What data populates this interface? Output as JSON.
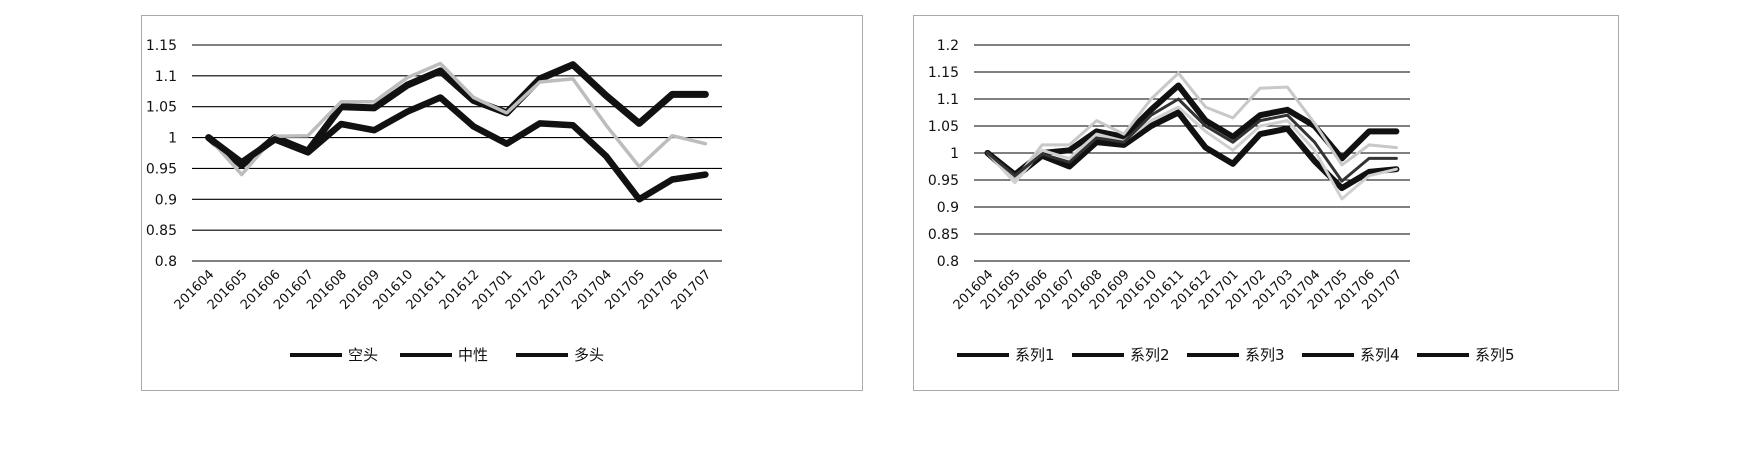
{
  "chart_data": [
    {
      "type": "line",
      "categories": [
        "201604",
        "201605",
        "201606",
        "201607",
        "201608",
        "201609",
        "201610",
        "201611",
        "201612",
        "201701",
        "201702",
        "201703",
        "201704",
        "201705",
        "201706",
        "201707"
      ],
      "ylim": [
        0.8,
        1.15
      ],
      "yticks": [
        "0.8",
        "0.85",
        "0.9",
        "0.95",
        "1",
        "1.05",
        "1.1",
        "1.15"
      ],
      "grid": true,
      "legend_position": "bottom",
      "series": [
        {
          "name": "空头",
          "values": [
            1.0,
            0.955,
            1.0,
            0.978,
            1.05,
            1.048,
            1.085,
            1.108,
            1.06,
            1.04,
            1.095,
            1.118,
            1.068,
            1.023,
            1.07,
            1.07
          ]
        },
        {
          "name": "中性",
          "values": [
            1.0,
            0.94,
            1.002,
            1.003,
            1.058,
            1.058,
            1.097,
            1.12,
            1.065,
            1.04,
            1.09,
            1.095,
            1.02,
            0.953,
            1.003,
            0.99
          ]
        },
        {
          "name": "多头",
          "values": [
            1.0,
            0.96,
            0.997,
            0.976,
            1.022,
            1.012,
            1.042,
            1.065,
            1.018,
            0.99,
            1.023,
            1.02,
            0.97,
            0.9,
            0.932,
            0.94
          ]
        }
      ],
      "colors": [
        "#111111",
        "#bdbdbd",
        "#111111"
      ]
    },
    {
      "type": "line",
      "categories": [
        "201604",
        "201605",
        "201606",
        "201607",
        "201608",
        "201609",
        "201610",
        "201611",
        "201612",
        "201701",
        "201702",
        "201703",
        "201704",
        "201705",
        "201706",
        "201707"
      ],
      "ylim": [
        0.8,
        1.2
      ],
      "yticks": [
        "0.8",
        "0.85",
        "0.9",
        "0.95",
        "1",
        "1.05",
        "1.1",
        "1.15",
        "1.2"
      ],
      "grid": true,
      "legend_position": "bottom",
      "series": [
        {
          "name": "系列1",
          "values": [
            1.0,
            0.96,
            1.0,
            1.005,
            1.04,
            1.03,
            1.08,
            1.125,
            1.06,
            1.03,
            1.07,
            1.08,
            1.05,
            0.99,
            1.04,
            1.04
          ]
        },
        {
          "name": "系列2",
          "values": [
            1.0,
            0.955,
            0.995,
            0.975,
            1.02,
            1.015,
            1.05,
            1.075,
            1.01,
            0.98,
            1.035,
            1.045,
            0.985,
            0.935,
            0.965,
            0.97
          ]
        },
        {
          "name": "系列3",
          "values": [
            1.0,
            0.95,
            1.015,
            1.015,
            1.06,
            1.035,
            1.1,
            1.148,
            1.085,
            1.065,
            1.12,
            1.122,
            1.055,
            0.978,
            1.015,
            1.01
          ]
        },
        {
          "name": "系列4",
          "values": [
            1.0,
            0.945,
            1.005,
            0.99,
            1.035,
            1.022,
            1.06,
            1.085,
            1.04,
            1.005,
            1.05,
            1.06,
            1.005,
            0.915,
            0.958,
            0.97
          ]
        },
        {
          "name": "系列5",
          "values": [
            1.0,
            0.958,
            0.998,
            0.983,
            1.028,
            1.02,
            1.07,
            1.1,
            1.05,
            1.02,
            1.06,
            1.07,
            1.02,
            0.948,
            0.99,
            0.99
          ]
        }
      ],
      "colors": [
        "#111111",
        "#111111",
        "#c8c8c8",
        "#d0d0d0",
        "#333333"
      ]
    }
  ]
}
